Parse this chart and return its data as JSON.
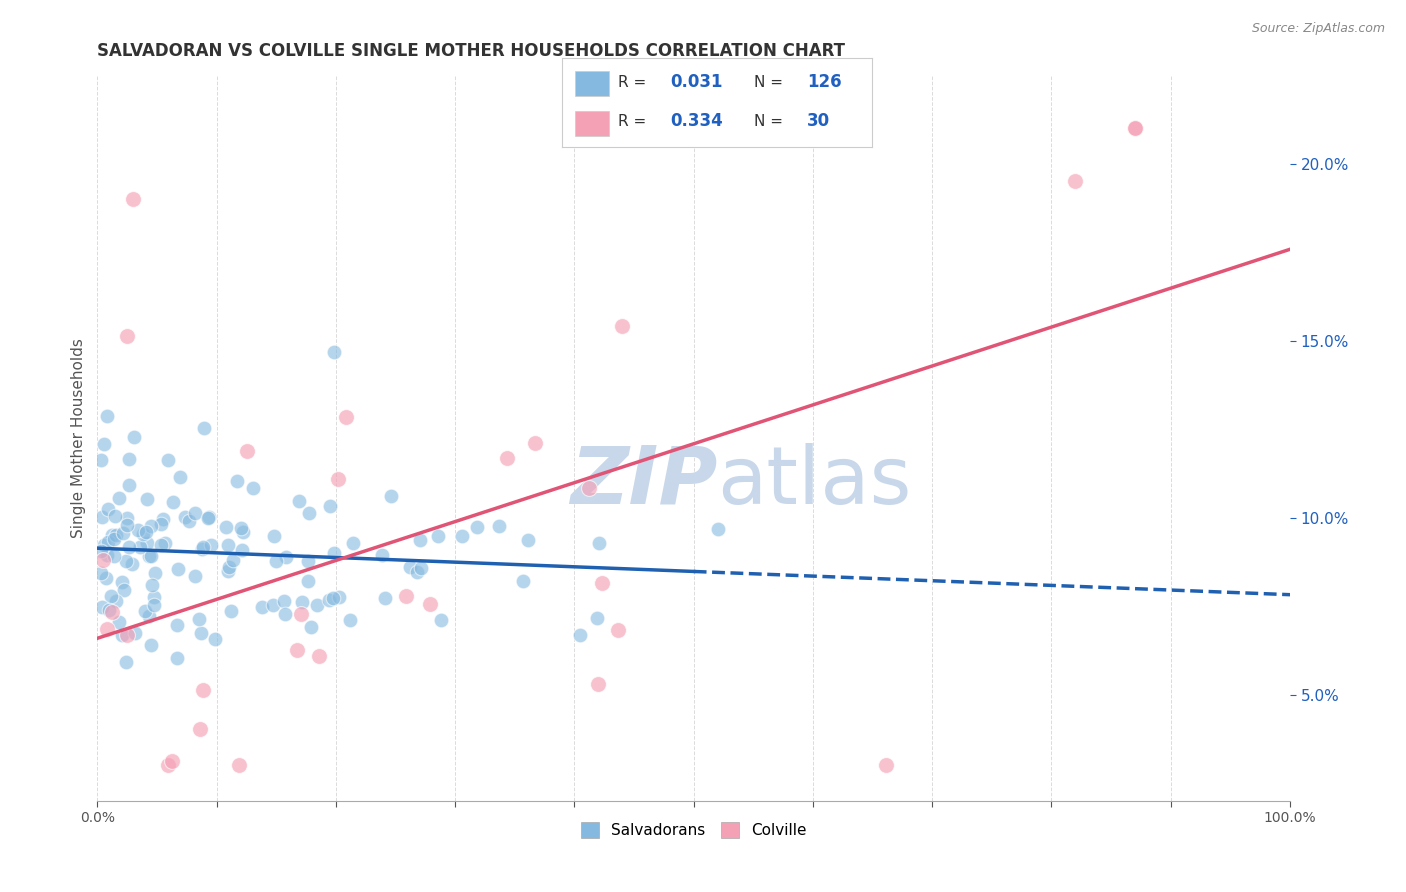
{
  "title": "SALVADORAN VS COLVILLE SINGLE MOTHER HOUSEHOLDS CORRELATION CHART",
  "source": "Source: ZipAtlas.com",
  "ylabel": "Single Mother Households",
  "legend_sal_R": "0.031",
  "legend_sal_N": "126",
  "legend_col_R": "0.334",
  "legend_col_N": "30",
  "bg_color": "#ffffff",
  "grid_color": "#cccccc",
  "scatter_blue": "#85b9e0",
  "scatter_pink": "#f4a0b5",
  "line_blue_solid": "#2060b0",
  "line_blue_dash": "#2060b0",
  "line_pink": "#e05575",
  "watermark_color": "#c8d8ea",
  "title_color": "#333333",
  "axis_color": "#555555",
  "tick_color": "#2060c0",
  "legend_border_color": "#cccccc",
  "xmin": 0,
  "xmax": 100,
  "ymin": 2.0,
  "ymax": 22.5,
  "yticks": [
    5.0,
    10.0,
    15.0,
    20.0
  ],
  "xtick_positions": [
    0,
    10,
    20,
    30,
    40,
    50,
    60,
    70,
    80,
    90,
    100
  ],
  "xtick_labels_show": [
    "0.0%",
    "",
    "",
    "",
    "",
    "",
    "",
    "",
    "",
    "",
    "100.0%"
  ]
}
